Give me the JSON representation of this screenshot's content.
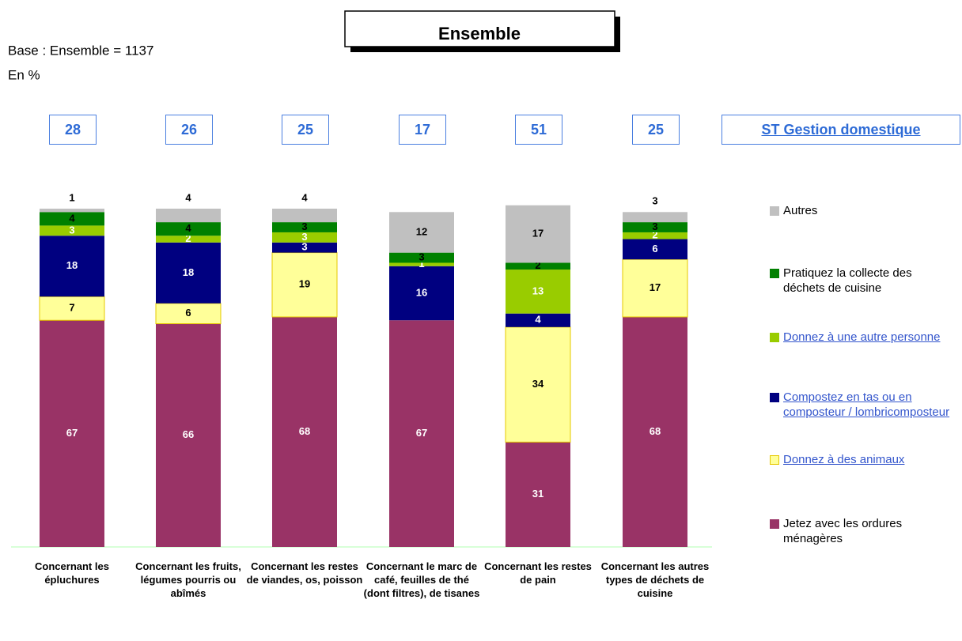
{
  "chart_data": {
    "type": "stacked_bar",
    "title": "Ensemble",
    "subtitle": [
      "Base : Ensemble = 1137",
      "En %"
    ],
    "categories": [
      "Concernant les épluchures",
      "Concernant les fruits, légumes pourris ou abîmés",
      "Concernant les restes de viandes, os, poisson",
      "Concernant le marc de café, feuilles de thé (dont filtres), de tisanes",
      "Concernant les restes de pain",
      "Concernant les autres types de déchets de cuisine"
    ],
    "ylim": [
      0,
      100
    ],
    "totals": {
      "name": "ST Gestion domestique",
      "values": [
        28,
        26,
        25,
        17,
        51,
        25
      ]
    },
    "series": [
      {
        "name": "Jetez avec les ordures ménagères",
        "color": "#993366",
        "label_color": "#ffffff",
        "legend_link": false,
        "values": [
          67,
          66,
          68,
          67,
          31,
          68
        ]
      },
      {
        "name": "Donnez à des animaux",
        "color": "#ffff99",
        "label_color": "#000000",
        "legend_link": true,
        "values": [
          7,
          6,
          19,
          null,
          34,
          17
        ]
      },
      {
        "name": "Compostez en tas ou en composteur / lombricomposteur",
        "color": "#000080",
        "label_color": "#ffffff",
        "legend_link": true,
        "values": [
          18,
          18,
          3,
          16,
          4,
          6
        ]
      },
      {
        "name": "Donnez à une autre personne",
        "color": "#99cc00",
        "label_color": "#ffffff",
        "legend_link": true,
        "values": [
          3,
          2,
          3,
          1,
          13,
          2
        ]
      },
      {
        "name": "Pratiquez la collecte des déchets de cuisine",
        "color": "#008000",
        "label_color": "#000000",
        "legend_link": false,
        "values": [
          4,
          4,
          3,
          3,
          2,
          3
        ]
      },
      {
        "name": "Autres",
        "color": "#c0c0c0",
        "label_color": "#000000",
        "legend_link": false,
        "values": [
          1,
          4,
          4,
          12,
          17,
          3
        ]
      }
    ]
  }
}
